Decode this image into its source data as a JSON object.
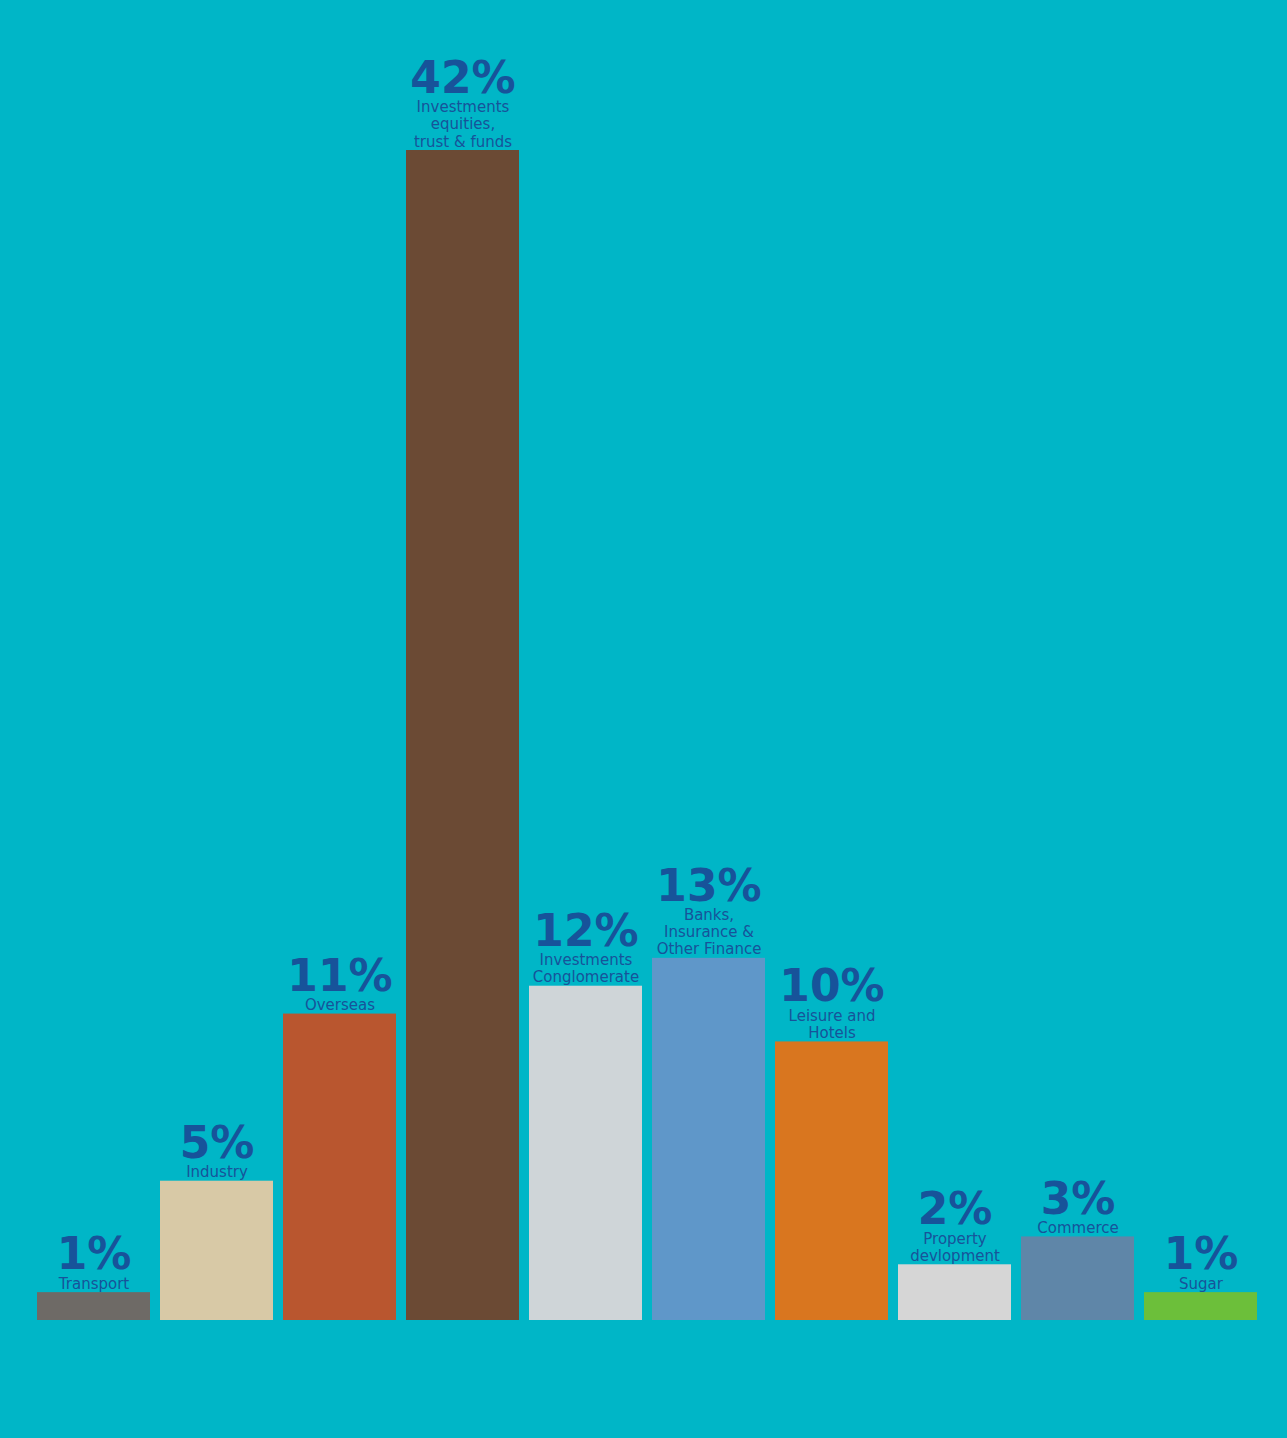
{
  "chart_data": {
    "type": "bar",
    "categories": [
      "Transport",
      "Industry",
      "Overseas",
      "Investments equities, trust & funds",
      "Investments Conglomerate",
      "Banks, Insurance & Other Finance",
      "Leisure and Hotels",
      "Property devlopment",
      "Commerce",
      "Sugar"
    ],
    "values": [
      1,
      5,
      11,
      42,
      12,
      13,
      10,
      2,
      3,
      1
    ],
    "value_labels": [
      "1%",
      "5%",
      "11%",
      "42%",
      "12%",
      "13%",
      "10%",
      "2%",
      "3%",
      "1%"
    ],
    "colors": [
      "#6e6a66",
      "#d8c9a6",
      "#b9562f",
      "#6b4a34",
      "#cfd5d8",
      "#5f97c9",
      "#d9761f",
      "#d6d6d6",
      "#5f86a8",
      "#6cbf3a"
    ],
    "ylim": [
      0,
      42
    ],
    "data_labels": true,
    "tick_labels": false
  }
}
